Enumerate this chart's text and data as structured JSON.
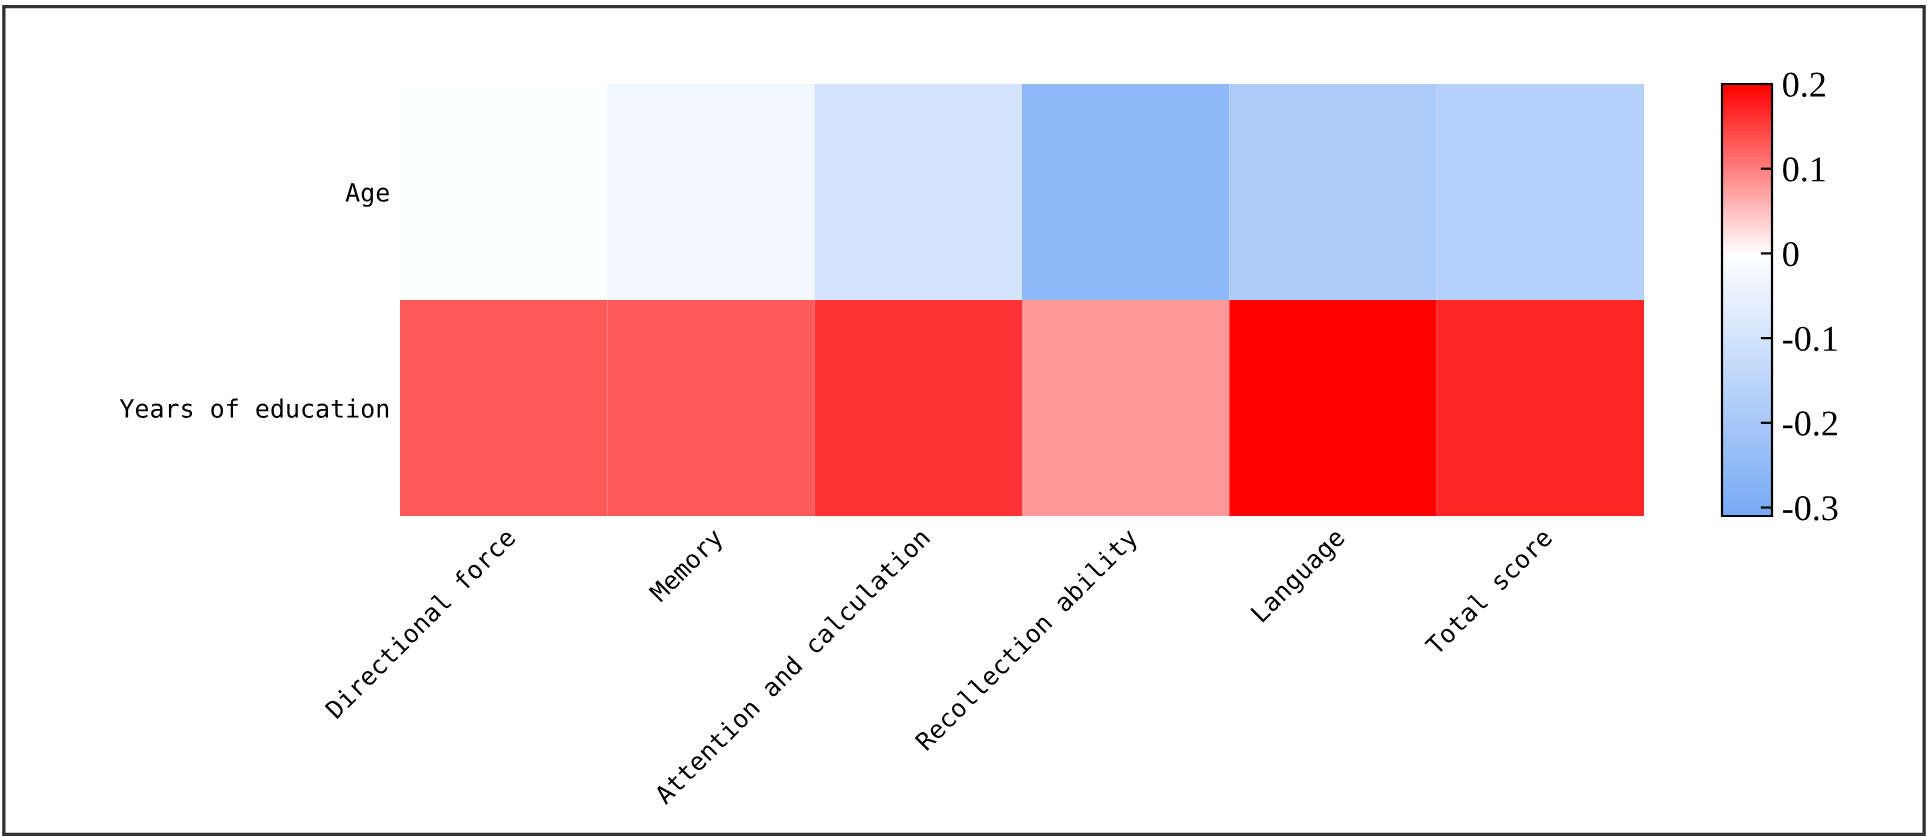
{
  "chart_data": {
    "type": "heatmap",
    "categories": [
      "Directional force",
      "Memory",
      "Attention and calculation",
      "Recollection ability",
      "Language",
      "Total score"
    ],
    "y_categories": [
      "Age",
      "Years of education"
    ],
    "cells": [
      [
        -0.005,
        -0.03,
        -0.1,
        -0.26,
        -0.19,
        -0.17
      ],
      [
        0.13,
        0.13,
        0.16,
        0.08,
        0.2,
        0.17
      ]
    ],
    "clim": [
      -0.31,
      0.2
    ],
    "cticks": [
      0.2,
      0.1,
      0,
      -0.1,
      -0.2,
      -0.3
    ]
  }
}
